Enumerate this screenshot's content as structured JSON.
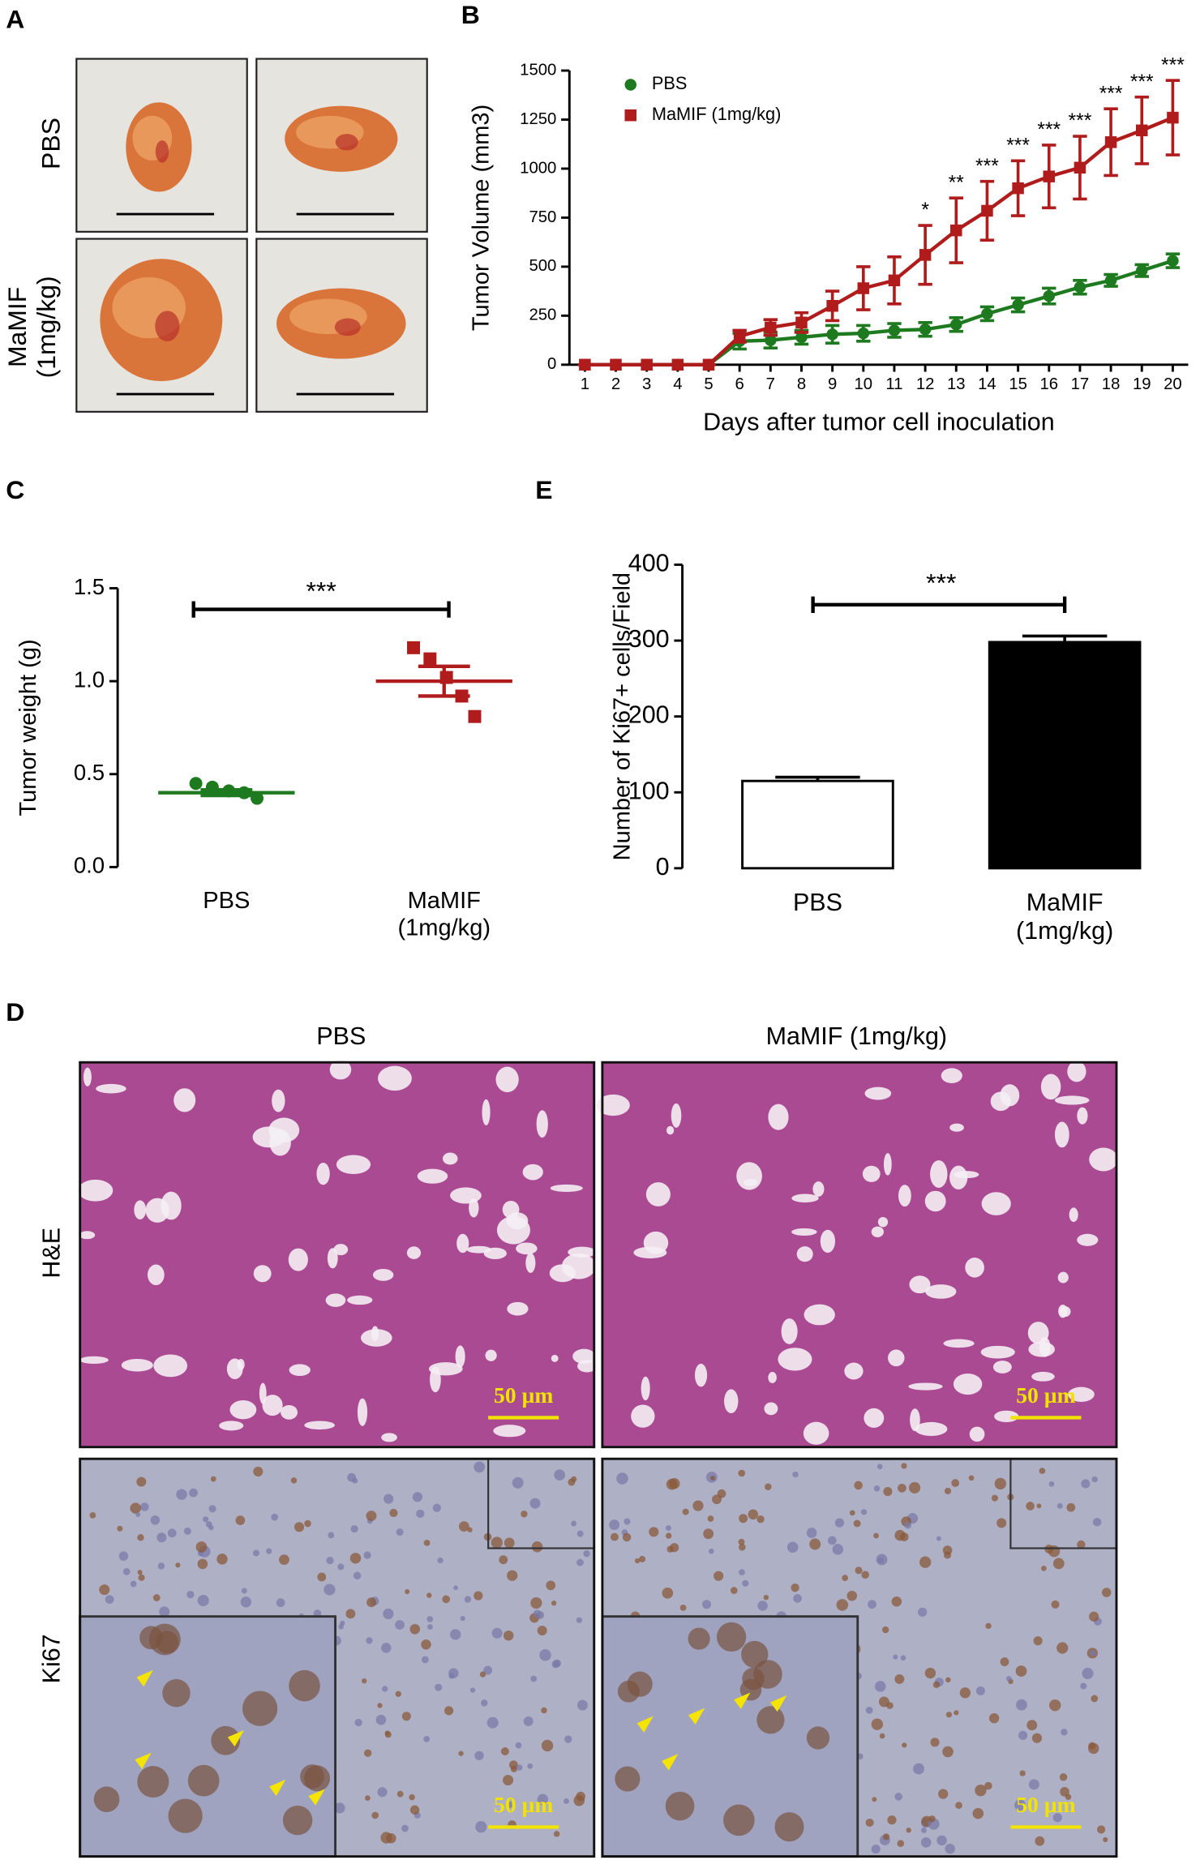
{
  "panels": {
    "letters": [
      "A",
      "B",
      "C",
      "D",
      "E"
    ],
    "a_rows": [
      "PBS",
      "MaMIF\n(1mg/kg)"
    ],
    "d_columns": [
      "PBS",
      "MaMIF (1mg/kg)"
    ],
    "d_rows": [
      "H&E",
      "Ki67"
    ],
    "scale_bar": "50 µm"
  },
  "chart_data": [
    {
      "type": "line",
      "xlabel": "Days after tumor cell inoculation",
      "ylabel": "Tumor Volume (mm3)",
      "x": [
        1,
        2,
        3,
        4,
        5,
        6,
        7,
        8,
        9,
        10,
        11,
        12,
        13,
        14,
        15,
        16,
        17,
        18,
        19,
        20
      ],
      "xlim": [
        0.5,
        20.5
      ],
      "xticks": [
        1,
        2,
        3,
        4,
        5,
        6,
        7,
        8,
        9,
        10,
        11,
        12,
        13,
        14,
        15,
        16,
        17,
        18,
        19,
        20
      ],
      "ylim": [
        0,
        1500
      ],
      "yticks": [
        0,
        250,
        500,
        750,
        1000,
        1250,
        1500
      ],
      "legend": "upper left",
      "series": [
        {
          "name": "PBS",
          "color": "#1e7a1e",
          "marker": "circle",
          "values": [
            0,
            0,
            0,
            0,
            0,
            120,
            125,
            140,
            155,
            160,
            175,
            180,
            205,
            260,
            305,
            350,
            395,
            430,
            480,
            530
          ],
          "errors": [
            0,
            0,
            0,
            0,
            0,
            40,
            40,
            35,
            45,
            40,
            35,
            35,
            35,
            35,
            35,
            40,
            35,
            30,
            30,
            35
          ]
        },
        {
          "name": "MaMIF (1mg/kg)",
          "color": "#b01c1c",
          "marker": "square",
          "values": [
            0,
            0,
            0,
            0,
            0,
            145,
            190,
            215,
            300,
            390,
            430,
            560,
            685,
            785,
            900,
            960,
            1005,
            1135,
            1195,
            1260
          ],
          "errors": [
            0,
            0,
            0,
            0,
            0,
            30,
            40,
            50,
            75,
            110,
            120,
            150,
            165,
            150,
            140,
            160,
            160,
            170,
            170,
            190
          ]
        }
      ],
      "annotations": [
        {
          "x": 12,
          "text": "*"
        },
        {
          "x": 13,
          "text": "**"
        },
        {
          "x": 14,
          "text": "***"
        },
        {
          "x": 15,
          "text": "***"
        },
        {
          "x": 16,
          "text": "***"
        },
        {
          "x": 17,
          "text": "***"
        },
        {
          "x": 18,
          "text": "***"
        },
        {
          "x": 19,
          "text": "***"
        },
        {
          "x": 20,
          "text": "***"
        }
      ]
    },
    {
      "type": "dotplot",
      "ylabel": "Tumor weight (g)",
      "categories": [
        "PBS",
        "MaMIF\n(1mg/kg)"
      ],
      "ylim": [
        0,
        1.5
      ],
      "yticks": [
        {
          "value": 0,
          "label": "0.0"
        },
        {
          "value": 0.5,
          "label": "0.5"
        },
        {
          "value": 1,
          "label": "1.0"
        },
        {
          "value": 1.5,
          "label": "1.5"
        }
      ],
      "colors": [
        "#1e7a1e",
        "#b01c1c"
      ],
      "markers": [
        "circle",
        "square"
      ],
      "points": [
        [
          0.45,
          0.43,
          0.41,
          0.4,
          0.37
        ],
        [
          1.18,
          1.12,
          1.02,
          0.92,
          0.81
        ]
      ],
      "means": [
        0.4,
        1.0
      ],
      "errors": [
        0.015,
        0.08
      ],
      "annotation": "***"
    },
    {
      "type": "bar",
      "ylabel": "Number of Ki67+ cells/Field",
      "categories": [
        "PBS",
        "MaMIF\n(1mg/kg)"
      ],
      "ylim": [
        0,
        400
      ],
      "yticks": [
        0,
        100,
        200,
        300,
        400
      ],
      "colors": [
        "#ffffff",
        "#000000"
      ],
      "values": [
        115,
        298
      ],
      "errors": [
        5,
        8
      ],
      "annotation": "***"
    }
  ]
}
